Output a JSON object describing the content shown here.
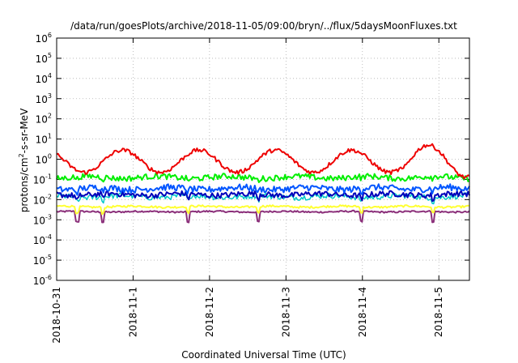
{
  "chart_data": {
    "type": "line",
    "title": "/data/run/goesPlots/archive/2018-11-05/09:00/bryn/../flux/5daysMoonFluxes.txt",
    "xlabel": "Coordinated Universal Time (UTC)",
    "ylabel": {
      "pre": "protons/cm",
      "sup": "2",
      "post": "-s-sr-MeV"
    },
    "y_scale": "log",
    "ylim_exponents": [
      -6,
      6
    ],
    "y_ticks": [
      {
        "base": "10",
        "exp": "-6"
      },
      {
        "base": "10",
        "exp": "-5"
      },
      {
        "base": "10",
        "exp": "-4"
      },
      {
        "base": "10",
        "exp": "-3"
      },
      {
        "base": "10",
        "exp": "-2"
      },
      {
        "base": "10",
        "exp": "-1"
      },
      {
        "base": "10",
        "exp": "0"
      },
      {
        "base": "10",
        "exp": "1"
      },
      {
        "base": "10",
        "exp": "2"
      },
      {
        "base": "10",
        "exp": "3"
      },
      {
        "base": "10",
        "exp": "4"
      },
      {
        "base": "10",
        "exp": "5"
      },
      {
        "base": "10",
        "exp": "6"
      }
    ],
    "xlim_days": [
      0,
      5.4
    ],
    "x_ticks": [
      {
        "label": "2018-10-31",
        "day": 0
      },
      {
        "label": "2018-11-1",
        "day": 1
      },
      {
        "label": "2018-11-2",
        "day": 2
      },
      {
        "label": "2018-11-3",
        "day": 3
      },
      {
        "label": "2018-11-4",
        "day": 4
      },
      {
        "label": "2018-11-5",
        "day": 5
      }
    ],
    "grid": true,
    "legend": "none",
    "series": [
      {
        "color": "#8b2f7a",
        "base_log10": -2.6,
        "amp": 0.04,
        "diurnal_amp": 0.02,
        "dip_depth": 0.5,
        "lw": 2
      },
      {
        "color": "#ffff33",
        "base_log10": -2.35,
        "amp": 0.05,
        "diurnal_amp": 0.03,
        "dip_depth": 0.3,
        "lw": 2
      },
      {
        "color": "#00c8c8",
        "base_log10": -1.85,
        "amp": 0.14,
        "diurnal_amp": 0.05,
        "dip_depth": 0.2,
        "lw": 1.5
      },
      {
        "color": "#0000bb",
        "base_log10": -1.75,
        "amp": 0.14,
        "diurnal_amp": 0.05,
        "dip_depth": 0.2,
        "lw": 2
      },
      {
        "color": "#0055ff",
        "base_log10": -1.45,
        "amp": 0.16,
        "diurnal_amp": 0.06,
        "dip_depth": 0.15,
        "lw": 2
      },
      {
        "color": "#00ee00",
        "base_log10": -0.9,
        "amp": 0.14,
        "diurnal_amp": 0.06,
        "dip_depth": 0.1,
        "lw": 2
      },
      {
        "color": "#ee0000",
        "base_log10": 0.0,
        "amp": 0.1,
        "diurnal_amp": 0.8,
        "dip_depth": 0.0,
        "lw": 2
      }
    ]
  }
}
